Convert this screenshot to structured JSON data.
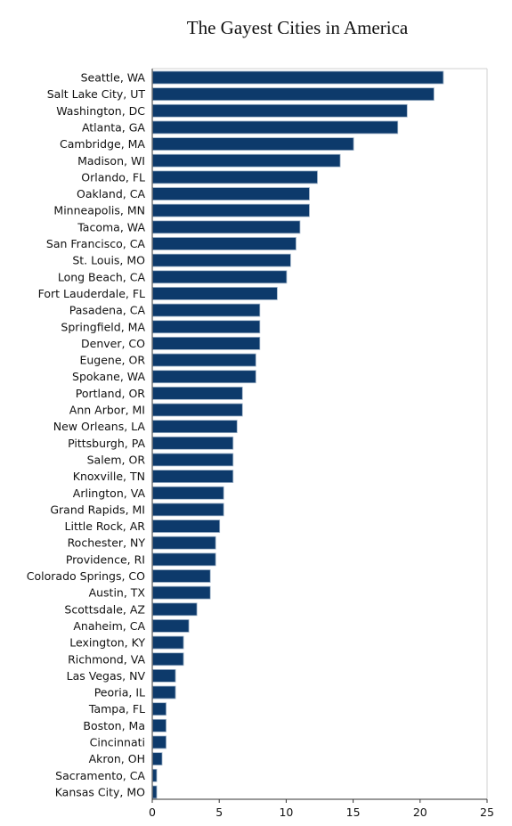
{
  "chart_data": {
    "type": "bar",
    "orientation": "horizontal",
    "title": "The Gayest Cities in America",
    "xlabel": "",
    "ylabel": "",
    "xlim": [
      0,
      25
    ],
    "xticks": [
      0,
      5,
      10,
      15,
      20,
      25
    ],
    "grid": false,
    "categories": [
      "Seattle, WA",
      "Salt Lake City, UT",
      "Washington, DC",
      "Atlanta, GA",
      "Cambridge, MA",
      "Madison, WI",
      "Orlando, FL",
      "Oakland, CA",
      "Minneapolis, MN",
      "Tacoma, WA",
      "San Francisco, CA",
      "St. Louis, MO",
      "Long Beach, CA",
      "Fort Lauderdale, FL",
      "Pasadena, CA",
      "Springfield, MA",
      "Denver, CO",
      "Eugene, OR",
      "Spokane, WA",
      "Portland, OR",
      "Ann Arbor, MI",
      "New Orleans, LA",
      "Pittsburgh, PA",
      "Salem, OR",
      "Knoxville, TN",
      "Arlington, VA",
      "Grand Rapids, MI",
      "Little Rock, AR",
      "Rochester, NY",
      "Providence, RI",
      "Colorado Springs, CO",
      "Austin, TX",
      "Scottsdale, AZ",
      "Anaheim, CA",
      "Lexington, KY",
      "Richmond, VA",
      "Las Vegas, NV",
      "Peoria, IL",
      "Tampa, FL",
      "Boston, Ma",
      "Cincinnati",
      "Akron, OH",
      "Sacramento, CA",
      "Kansas City, MO"
    ],
    "values": [
      21.7,
      21.0,
      19.0,
      18.3,
      15.0,
      14.0,
      12.3,
      11.7,
      11.7,
      11.0,
      10.7,
      10.3,
      10.0,
      9.3,
      8.0,
      8.0,
      8.0,
      7.7,
      7.7,
      6.7,
      6.7,
      6.3,
      6.0,
      6.0,
      6.0,
      5.3,
      5.3,
      5.0,
      4.7,
      4.7,
      4.3,
      4.3,
      3.3,
      2.7,
      2.3,
      2.3,
      1.7,
      1.7,
      1.0,
      1.0,
      1.0,
      0.7,
      0.3,
      0.3
    ],
    "colors": {
      "bar": "#0d3a6b",
      "bar_edge": "#9fb3c8",
      "axis": "#333333",
      "frame": "#d0d0d0"
    }
  }
}
